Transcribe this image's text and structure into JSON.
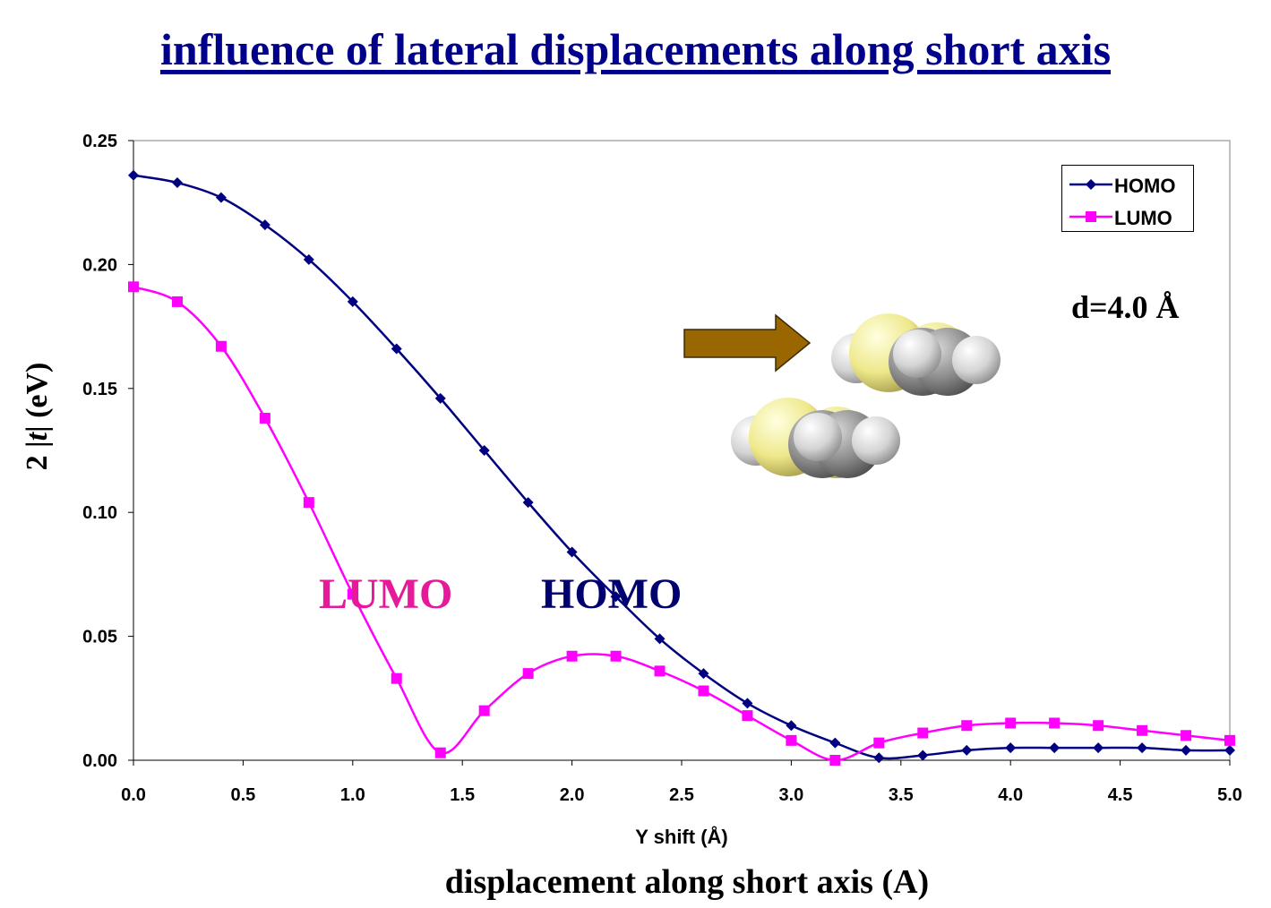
{
  "title": "influence of lateral displacements along short axis",
  "chart_data": {
    "type": "line",
    "xlabel": "Y shift (Å)",
    "ylabel_prefix": "2 |",
    "ylabel_var": "t",
    "ylabel_suffix": "|  (eV)",
    "xlim": [
      0,
      5
    ],
    "ylim": [
      0,
      0.25
    ],
    "x_ticks": [
      "0.0",
      "0.5",
      "1.0",
      "1.5",
      "2.0",
      "2.5",
      "3.0",
      "3.5",
      "4.0",
      "4.5",
      "5.0"
    ],
    "y_ticks": [
      "0.00",
      "0.05",
      "0.10",
      "0.15",
      "0.20",
      "0.25"
    ],
    "x": [
      0.0,
      0.2,
      0.4,
      0.6,
      0.8,
      1.0,
      1.2,
      1.4,
      1.6,
      1.8,
      2.0,
      2.2,
      2.4,
      2.6,
      2.8,
      3.0,
      3.2,
      3.4,
      3.6,
      3.8,
      4.0,
      4.2,
      4.4,
      4.6,
      4.8,
      5.0
    ],
    "series": [
      {
        "name": "HOMO",
        "color": "#000080",
        "marker": "diamond",
        "values": [
          0.236,
          0.233,
          0.227,
          0.216,
          0.202,
          0.185,
          0.166,
          0.146,
          0.125,
          0.104,
          0.084,
          0.066,
          0.049,
          0.035,
          0.023,
          0.014,
          0.007,
          0.001,
          0.002,
          0.004,
          0.005,
          0.005,
          0.005,
          0.005,
          0.004,
          0.004
        ]
      },
      {
        "name": "LUMO",
        "color": "#ff00ff",
        "marker": "square",
        "values": [
          0.191,
          0.185,
          0.167,
          0.138,
          0.104,
          0.067,
          0.033,
          0.003,
          0.02,
          0.035,
          0.042,
          0.042,
          0.036,
          0.028,
          0.018,
          0.008,
          0.0,
          0.007,
          0.011,
          0.014,
          0.015,
          0.015,
          0.014,
          0.012,
          0.01,
          0.008
        ]
      }
    ],
    "legend_position": "top-right",
    "grid": false
  },
  "annotations": {
    "distance": "d=4.0 Å",
    "lumo_label": "LUMO",
    "homo_label": "HOMO",
    "x_subtitle": "displacement along short axis (A)"
  },
  "illustration": {
    "arrow_color": "#996600",
    "sulfur_color": "#eeee88",
    "carbon_color": "#808080",
    "hydrogen_color": "#dddddd"
  }
}
